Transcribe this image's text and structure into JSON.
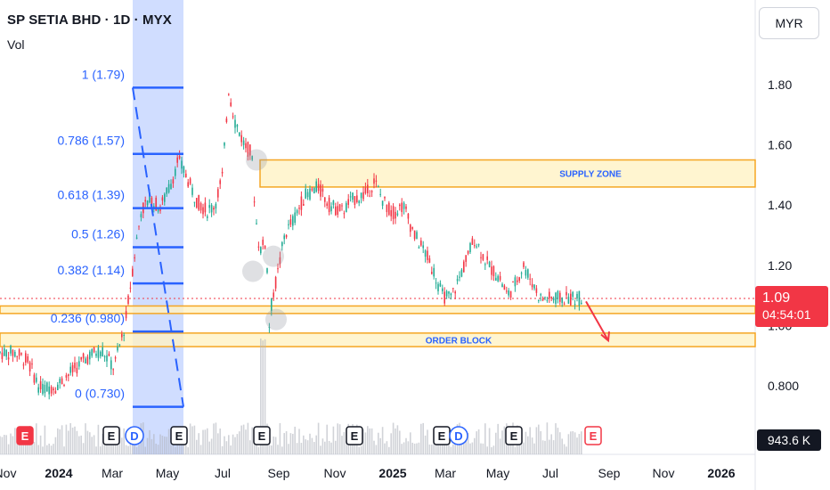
{
  "legend": {
    "title": "SP SETIA BHD · 1D · MYX",
    "volume_label": "Vol"
  },
  "price_scale": {
    "currency": "MYR",
    "ticks": [
      "1.80",
      "1.60",
      "1.40",
      "1.20",
      "1.00",
      "0.800"
    ]
  },
  "price_tag": {
    "price": "1.09",
    "countdown": "04:54:01",
    "color": "#f23645"
  },
  "volume_tag": {
    "value": "943.6 K"
  },
  "time_axis": {
    "labels": [
      "Nov",
      "2024",
      "Mar",
      "May",
      "Jul",
      "Sep",
      "Nov",
      "2025",
      "Mar",
      "May",
      "Jul",
      "Sep",
      "Nov",
      "2026"
    ]
  },
  "zones": [
    {
      "label": "SUPPLY ZONE",
      "low": 1.46,
      "high": 1.55
    },
    {
      "label": "ORDER BLOCK",
      "low": 0.93,
      "high": 0.975
    },
    {
      "label": "",
      "low": 1.04,
      "high": 1.065
    }
  ],
  "fibonacci": [
    {
      "label": "1 (1.79)",
      "price": 1.79
    },
    {
      "label": "0.786 (1.57)",
      "price": 1.57
    },
    {
      "label": "0.618 (1.39)",
      "price": 1.39
    },
    {
      "label": "0.5 (1.26)",
      "price": 1.26
    },
    {
      "label": "0.382 (1.14)",
      "price": 1.14
    },
    {
      "label": "0.236 (0.980)",
      "price": 0.98
    },
    {
      "label": "0 (0.730)",
      "price": 0.73
    }
  ],
  "events": [
    {
      "type": "E",
      "month": "Nov"
    },
    {
      "type": "E",
      "month": "Feb"
    },
    {
      "type": "D",
      "month": "Mar"
    },
    {
      "type": "E",
      "month": "May"
    },
    {
      "type": "E",
      "month": "Aug"
    },
    {
      "type": "E",
      "month": "Nov"
    },
    {
      "type": "E",
      "month": "Feb"
    },
    {
      "type": "D",
      "month": "Mar"
    },
    {
      "type": "E",
      "month": "May"
    },
    {
      "type": "E",
      "month": "Jul"
    },
    {
      "type": "E",
      "month": "Aug"
    }
  ],
  "colors": {
    "up": "#22ab94",
    "down": "#f23645",
    "fib": "#2962ff",
    "zone_fill": "#fff3c4",
    "zone_border": "#f5a623",
    "highlight": "#2962ff"
  },
  "chart_data": {
    "type": "line",
    "title": "SP SETIA BHD · 1D · MYX",
    "ylim": [
      0.68,
      1.92
    ],
    "series": [
      {
        "name": "SP SETIA BHD",
        "x": [
          "2023-10-20",
          "2023-11-05",
          "2023-11-20",
          "2023-12-10",
          "2023-12-31",
          "2024-01-20",
          "2024-02-05",
          "2024-02-20",
          "2024-03-05",
          "2024-03-15",
          "2024-03-25",
          "2024-04-05",
          "2024-04-18",
          "2024-05-01",
          "2024-05-10",
          "2024-05-20",
          "2024-06-01",
          "2024-06-15",
          "2024-06-25",
          "2024-07-05",
          "2024-07-12",
          "2024-07-20",
          "2024-08-01",
          "2024-08-10",
          "2024-08-15",
          "2024-08-20",
          "2024-08-28",
          "2024-09-01",
          "2024-09-05",
          "2024-09-10",
          "2024-09-20",
          "2024-10-01",
          "2024-10-15",
          "2024-11-01",
          "2024-11-15",
          "2024-12-01",
          "2024-12-15",
          "2025-01-01",
          "2025-01-10",
          "2025-01-20",
          "2025-02-01",
          "2025-02-15",
          "2025-03-01",
          "2025-03-15",
          "2025-03-25",
          "2025-04-05",
          "2025-04-15",
          "2025-04-25",
          "2025-05-05",
          "2025-05-15",
          "2025-06-01",
          "2025-06-15",
          "2025-06-25",
          "2025-07-05",
          "2025-07-15",
          "2025-07-25",
          "2025-08-05"
        ],
        "values": [
          0.91,
          0.88,
          0.79,
          0.8,
          0.85,
          0.9,
          0.92,
          0.86,
          1.0,
          1.2,
          1.38,
          1.42,
          1.39,
          1.47,
          1.55,
          1.5,
          1.42,
          1.38,
          1.4,
          1.5,
          1.79,
          1.68,
          1.6,
          1.57,
          1.36,
          1.25,
          1.28,
          1.0,
          1.1,
          1.15,
          1.3,
          1.35,
          1.43,
          1.46,
          1.4,
          1.38,
          1.42,
          1.44,
          1.48,
          1.42,
          1.37,
          1.4,
          1.3,
          1.24,
          1.18,
          1.1,
          1.09,
          1.15,
          1.22,
          1.29,
          1.2,
          1.16,
          1.1,
          1.14,
          1.2,
          1.15,
          1.09
        ]
      },
      {
        "name": "Vol",
        "x": [
          "2024-03",
          "2024-05",
          "2024-07",
          "2024-08",
          "2024-09",
          "2024-11",
          "2025-01",
          "2025-03",
          "2025-05",
          "2025-07"
        ],
        "values": [
          0.5,
          0.4,
          0.35,
          1.0,
          0.6,
          0.3,
          0.25,
          0.2,
          0.2,
          0.15
        ]
      }
    ]
  }
}
